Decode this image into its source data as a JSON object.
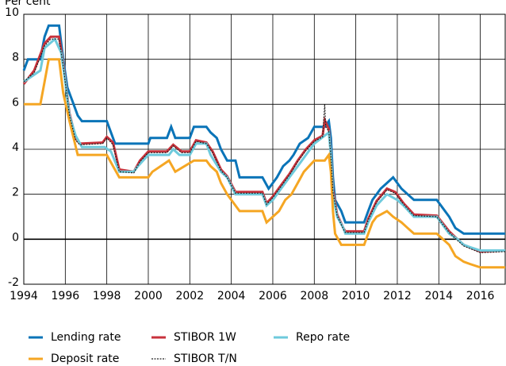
{
  "chart_data": {
    "type": "line",
    "y_label": "Per cent",
    "xlim": [
      1994,
      2017.2
    ],
    "xticks": [
      1994,
      1996,
      1998,
      2000,
      2002,
      2004,
      2006,
      2008,
      2010,
      2012,
      2014,
      2016
    ],
    "ylim": [
      -2,
      10
    ],
    "yticks": [
      -2,
      0,
      2,
      4,
      6,
      8,
      10
    ],
    "grid": true,
    "legend": "bottom",
    "series": [
      {
        "name": "Lending rate",
        "color": "#0a74b8",
        "x": [
          1994,
          1994.2,
          1994.8,
          1994.9,
          1995.0,
          1995.2,
          1995.7,
          1995.9,
          1996.1,
          1996.4,
          1996.6,
          1996.8,
          1998.0,
          1998.2,
          1998.4,
          2000.0,
          2000.1,
          2000.9,
          2001.1,
          2001.3,
          2002.0,
          2002.2,
          2002.8,
          2003.0,
          2003.3,
          2003.5,
          2003.8,
          2004.2,
          2004.4,
          2005.5,
          2005.8,
          2006.0,
          2006.2,
          2006.5,
          2006.8,
          2007.0,
          2007.3,
          2007.7,
          2008.0,
          2008.5,
          2008.7,
          2008.8,
          2008.9,
          2009.0,
          2009.3,
          2009.5,
          2010.4,
          2010.6,
          2010.8,
          2011.0,
          2011.2,
          2011.5,
          2011.8,
          2012.0,
          2012.2,
          2012.5,
          2012.8,
          2013.9,
          2014.1,
          2014.5,
          2014.8,
          2015.2,
          2017.2
        ],
        "values": [
          7.5,
          8.0,
          8.0,
          8.5,
          9.0,
          9.5,
          9.5,
          8.0,
          6.75,
          6.0,
          5.5,
          5.25,
          5.25,
          4.75,
          4.25,
          4.25,
          4.5,
          4.5,
          5.0,
          4.5,
          4.5,
          5.0,
          5.0,
          4.75,
          4.5,
          4.0,
          3.5,
          3.5,
          2.75,
          2.75,
          2.25,
          2.5,
          2.75,
          3.25,
          3.5,
          3.75,
          4.25,
          4.5,
          5.0,
          5.0,
          5.25,
          4.5,
          2.75,
          1.75,
          1.25,
          0.75,
          0.75,
          1.25,
          1.75,
          2.0,
          2.25,
          2.5,
          2.75,
          2.5,
          2.25,
          2.0,
          1.75,
          1.75,
          1.5,
          1.0,
          0.5,
          0.25,
          0.25
        ]
      },
      {
        "name": "STIBOR 1W",
        "color": "#c8323c",
        "x": [
          1994,
          1994.5,
          1995.0,
          1995.3,
          1995.7,
          1995.9,
          1996.2,
          1996.5,
          1996.7,
          1997.8,
          1998.0,
          1998.3,
          1998.6,
          1999.3,
          1999.6,
          2000.0,
          2000.9,
          2001.2,
          2001.6,
          2002.0,
          2002.3,
          2002.8,
          2003.1,
          2003.5,
          2003.8,
          2004.2,
          2005.5,
          2005.7,
          2006.0,
          2006.4,
          2006.8,
          2007.2,
          2007.6,
          2008.0,
          2008.4,
          2008.5,
          2008.7,
          2008.8,
          2008.9,
          2009.1,
          2009.4,
          2009.5,
          2010.4,
          2010.6,
          2011.0,
          2011.5,
          2011.9,
          2012.3,
          2012.8,
          2013.9,
          2014.5,
          2014.9,
          2015.2,
          2015.6,
          2016.0,
          2017.2
        ],
        "values": [
          6.9,
          7.5,
          8.7,
          9.0,
          9.0,
          7.8,
          5.6,
          4.5,
          4.25,
          4.3,
          4.55,
          4.3,
          3.1,
          3.0,
          3.5,
          3.9,
          3.9,
          4.2,
          3.9,
          3.9,
          4.4,
          4.3,
          3.9,
          3.1,
          2.8,
          2.1,
          2.1,
          1.6,
          1.9,
          2.4,
          2.9,
          3.5,
          4.0,
          4.4,
          4.6,
          5.3,
          4.9,
          3.8,
          2.2,
          1.1,
          0.5,
          0.35,
          0.35,
          0.9,
          1.7,
          2.25,
          2.1,
          1.6,
          1.1,
          1.05,
          0.35,
          0.0,
          -0.25,
          -0.4,
          -0.55,
          -0.5
        ]
      },
      {
        "name": "Repo rate",
        "color": "#6ecadc",
        "x": [
          1994,
          1994.8,
          1995.0,
          1995.5,
          1995.8,
          1996.0,
          1996.2,
          1996.5,
          1996.8,
          1997.9,
          1998.2,
          1998.6,
          1999.3,
          1999.5,
          2000.0,
          2001.0,
          2001.2,
          2001.5,
          2002.0,
          2002.3,
          2002.8,
          2003.0,
          2003.5,
          2003.8,
          2004.2,
          2005.5,
          2005.7,
          2006.0,
          2006.4,
          2006.8,
          2007.2,
          2007.6,
          2008.0,
          2008.7,
          2008.8,
          2008.9,
          2009.1,
          2009.4,
          2009.5,
          2010.4,
          2010.6,
          2011.0,
          2011.5,
          2012.0,
          2012.3,
          2012.8,
          2013.9,
          2014.5,
          2014.9,
          2015.2,
          2015.5,
          2016.0,
          2017.2
        ],
        "values": [
          7.0,
          7.5,
          8.5,
          8.9,
          8.3,
          7.0,
          5.5,
          4.6,
          4.1,
          4.1,
          3.9,
          3.0,
          3.0,
          3.25,
          3.75,
          3.75,
          4.0,
          3.75,
          3.75,
          4.25,
          4.25,
          3.75,
          3.0,
          2.75,
          2.0,
          2.0,
          1.5,
          1.75,
          2.25,
          2.75,
          3.25,
          3.75,
          4.25,
          4.75,
          3.75,
          2.0,
          1.0,
          0.5,
          0.25,
          0.25,
          0.75,
          1.5,
          2.0,
          1.75,
          1.5,
          1.0,
          1.0,
          0.25,
          0.0,
          -0.25,
          -0.35,
          -0.5,
          -0.5
        ]
      },
      {
        "name": "Deposit rate",
        "color": "#f5a623",
        "x": [
          1994,
          1994.8,
          1995.0,
          1995.2,
          1995.7,
          1995.9,
          1996.2,
          1996.4,
          1996.6,
          1998.0,
          1998.3,
          1998.6,
          2000.0,
          2000.2,
          2001.0,
          2001.3,
          2002.2,
          2002.8,
          2003.0,
          2003.3,
          2003.5,
          2003.8,
          2004.4,
          2005.5,
          2005.7,
          2006.0,
          2006.3,
          2006.6,
          2006.9,
          2007.2,
          2007.5,
          2008.0,
          2008.5,
          2008.7,
          2008.8,
          2008.9,
          2009.0,
          2009.3,
          2010.4,
          2010.6,
          2010.8,
          2011.0,
          2011.5,
          2011.8,
          2012.2,
          2012.5,
          2012.8,
          2013.9,
          2014.5,
          2014.8,
          2015.2,
          2015.5,
          2016.0,
          2017.2
        ],
        "values": [
          6.0,
          6.0,
          7.0,
          8.0,
          8.0,
          6.5,
          5.25,
          4.5,
          3.75,
          3.75,
          3.25,
          2.75,
          2.75,
          3.0,
          3.5,
          3.0,
          3.5,
          3.5,
          3.25,
          3.0,
          2.5,
          2.0,
          1.25,
          1.25,
          0.75,
          1.0,
          1.25,
          1.75,
          2.0,
          2.5,
          3.0,
          3.5,
          3.5,
          3.75,
          3.0,
          1.25,
          0.25,
          -0.25,
          -0.25,
          0.25,
          0.75,
          1.0,
          1.25,
          1.0,
          0.75,
          0.5,
          0.25,
          0.25,
          -0.25,
          -0.75,
          -1.0,
          -1.1,
          -1.25,
          -1.25
        ]
      },
      {
        "name": "STIBOR T/N",
        "color": "#222222",
        "dashed": true,
        "x": [
          1994,
          1994.5,
          1995.0,
          1995.3,
          1995.7,
          1995.9,
          1996.2,
          1996.5,
          1996.7,
          1997.8,
          1998.0,
          1998.3,
          1998.6,
          1999.3,
          1999.6,
          2000.0,
          2000.9,
          2001.2,
          2001.6,
          2002.0,
          2002.3,
          2002.8,
          2003.1,
          2003.5,
          2003.8,
          2004.2,
          2005.5,
          2005.7,
          2006.0,
          2006.4,
          2006.8,
          2007.2,
          2007.6,
          2008.0,
          2008.4,
          2008.5,
          2008.55,
          2008.7,
          2008.8,
          2008.9,
          2009.1,
          2009.4,
          2009.5,
          2010.4,
          2010.6,
          2011.0,
          2011.5,
          2011.9,
          2012.3,
          2012.8,
          2013.9,
          2014.5,
          2014.9,
          2015.2,
          2015.6,
          2016.0,
          2017.2
        ],
        "values": [
          7.0,
          7.4,
          8.6,
          8.9,
          8.9,
          7.7,
          5.5,
          4.4,
          4.2,
          4.25,
          4.5,
          4.2,
          3.0,
          2.95,
          3.45,
          3.85,
          3.85,
          4.15,
          3.85,
          3.85,
          4.35,
          4.25,
          3.85,
          3.05,
          2.75,
          2.05,
          2.05,
          1.55,
          1.85,
          2.35,
          2.85,
          3.45,
          3.95,
          4.35,
          4.55,
          6.0,
          5.0,
          4.8,
          3.7,
          2.1,
          1.05,
          0.45,
          0.3,
          0.3,
          0.85,
          1.65,
          2.2,
          2.05,
          1.55,
          1.05,
          1.0,
          0.3,
          -0.05,
          -0.3,
          -0.45,
          -0.6,
          -0.55
        ]
      }
    ]
  }
}
